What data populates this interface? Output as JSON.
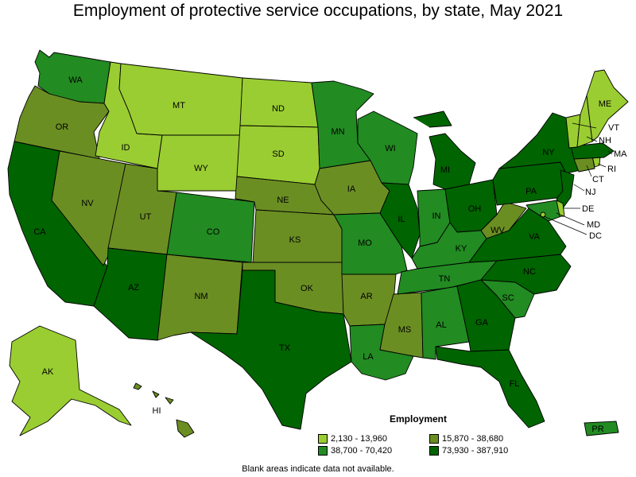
{
  "title": "Employment of protective service occupations, by state, May 2021",
  "legend": {
    "title": "Employment",
    "items": [
      {
        "label": "2,130 - 13,960",
        "color": "#9acd32"
      },
      {
        "label": "15,870 - 38,680",
        "color": "#6b8e23"
      },
      {
        "label": "38,700 - 70,420",
        "color": "#228b22"
      },
      {
        "label": "73,930 - 387,910",
        "color": "#006400"
      }
    ]
  },
  "footnote": "Blank areas indicate data not available.",
  "states": {
    "WA": 3,
    "OR": 2,
    "CA": 4,
    "NV": 2,
    "ID": 1,
    "MT": 1,
    "WY": 1,
    "UT": 2,
    "AZ": 4,
    "CO": 3,
    "NM": 2,
    "ND": 1,
    "SD": 1,
    "NE": 2,
    "KS": 2,
    "OK": 2,
    "TX": 4,
    "MN": 3,
    "IA": 2,
    "MO": 3,
    "AR": 2,
    "LA": 3,
    "WI": 3,
    "IL": 4,
    "MS": 2,
    "MI": 4,
    "IN": 3,
    "KY": 3,
    "TN": 3,
    "AL": 3,
    "GA": 4,
    "FL": 4,
    "OH": 4,
    "WV": 2,
    "VA": 4,
    "NC": 4,
    "SC": 3,
    "PA": 4,
    "NY": 4,
    "NJ": 4,
    "DE": 1,
    "MD": 3,
    "DC": 1,
    "CT": 2,
    "RI": 1,
    "MA": 4,
    "VT": 1,
    "NH": 1,
    "ME": 1,
    "AK": 1,
    "HI": 2,
    "PR": 3
  }
}
